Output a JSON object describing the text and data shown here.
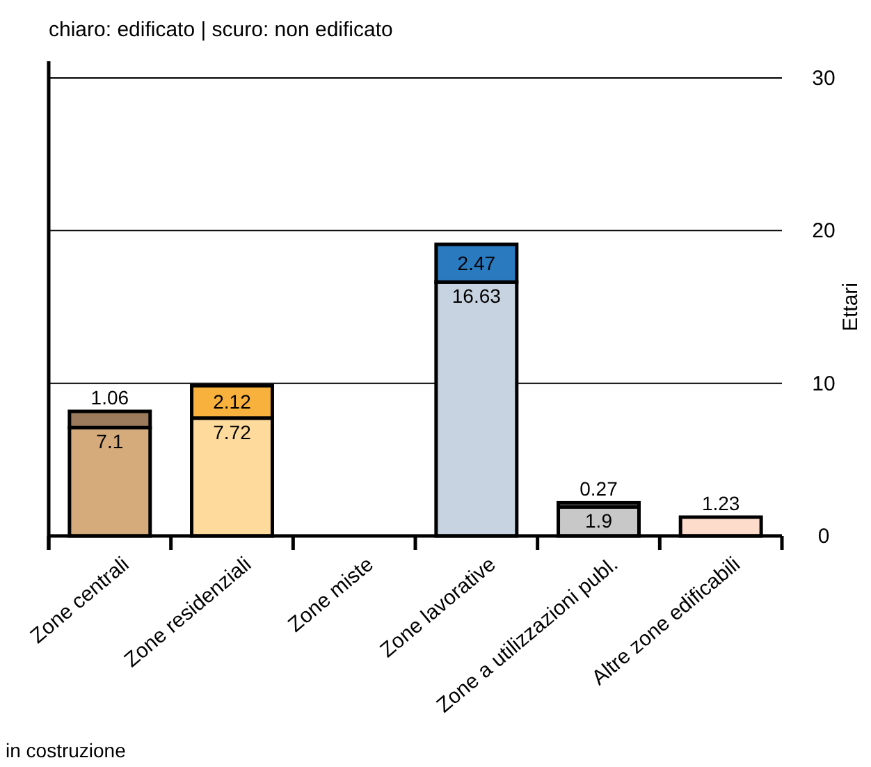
{
  "chart_data": {
    "type": "bar",
    "stacked": true,
    "title": "chiaro: edificato | scuro: non edificato",
    "ylabel": "Ettari",
    "categories": [
      "Zone centrali",
      "Zone residenziali",
      "Zone miste",
      "Zone lavorative",
      "Zone a utilizzazioni publ.",
      "Altre zone edificabili"
    ],
    "series": [
      {
        "colors": [
          "#d5ab7b",
          "#fedb9d",
          null,
          "#c8d3e1",
          "#c8c8c8",
          "#fddccc"
        ],
        "values": [
          7.1,
          7.72,
          null,
          16.63,
          1.9,
          1.23
        ]
      },
      {
        "colors": [
          "#9c7b5c",
          "#f8b13c",
          null,
          "#2a7ac0",
          "#8a8a8a",
          null
        ],
        "values": [
          1.06,
          2.12,
          null,
          2.47,
          0.27,
          null
        ]
      }
    ],
    "ylim": [
      0,
      30
    ],
    "yticks": [
      0,
      10,
      20,
      30
    ],
    "grid": "y",
    "data_labels": true,
    "annotations": [
      "in costruzione"
    ]
  }
}
